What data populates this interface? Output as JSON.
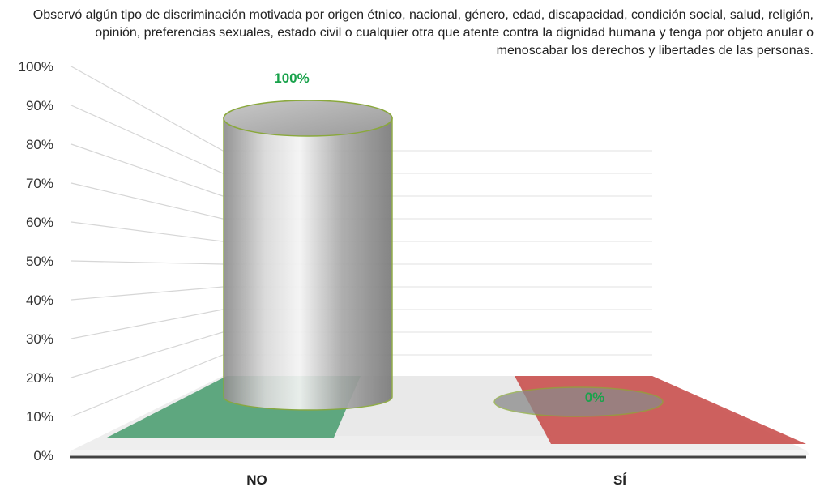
{
  "chart_data": {
    "type": "bar",
    "title": "Observó algún tipo de discriminación motivada por origen étnico, nacional, género, edad, discapacidad, condición social, salud, religión, opinión, preferencias sexuales, estado civil o cualquier otra que atente contra la dignidad humana y tenga por objeto anular o menoscabar los derechos y libertades de las personas.",
    "categories": [
      "NO",
      "SÍ"
    ],
    "values": [
      100,
      0
    ],
    "data_labels": [
      "100%",
      "0%"
    ],
    "yticks": [
      "0%",
      "10%",
      "20%",
      "30%",
      "40%",
      "50%",
      "60%",
      "70%",
      "80%",
      "90%",
      "100%"
    ],
    "ylim": [
      0,
      100
    ],
    "xlabel": "",
    "ylabel": "",
    "grid": true,
    "legend": "none",
    "colors": {
      "bar": "#b8b8b8",
      "bar_outline": "#8aa83c",
      "floor_left": "#4e9e72",
      "floor_mid": "#e8e8e8",
      "floor_right": "#c9504e",
      "label": "#19a24b"
    }
  }
}
